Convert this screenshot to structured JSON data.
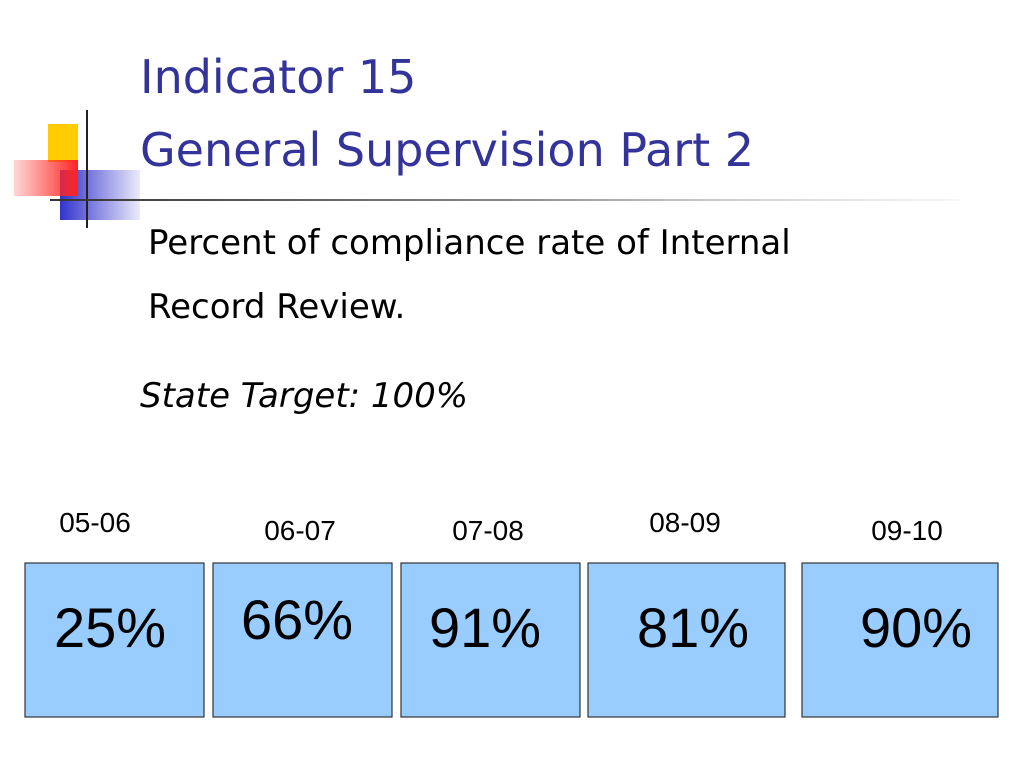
{
  "title": {
    "line1": "Indicator 15",
    "line2": "General Supervision Part 2"
  },
  "description": {
    "line1": "Percent of compliance rate of Internal",
    "line2": "Record Review."
  },
  "target": "State Target: 100%",
  "boxes": [
    {
      "period": "05-06",
      "value": "25%"
    },
    {
      "period": "06-07",
      "value": "66%"
    },
    {
      "period": "07-08",
      "value": "91%"
    },
    {
      "period": "08-09",
      "value": "81%"
    },
    {
      "period": "09-10",
      "value": "90%"
    }
  ]
}
